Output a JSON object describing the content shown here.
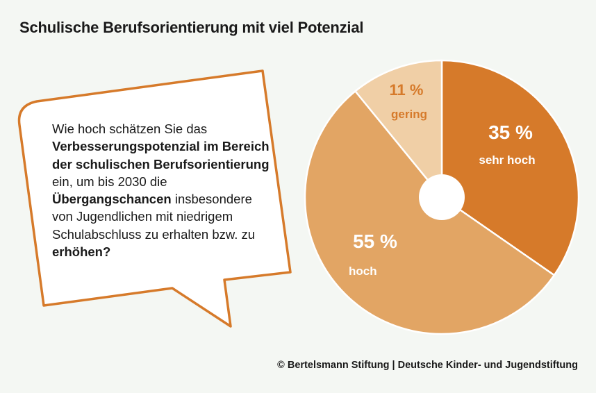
{
  "title": "Schulische Berufsorientierung mit viel Potenzial",
  "question": [
    {
      "text": "Wie hoch schätzen Sie das ",
      "bold": false
    },
    {
      "text": "Verbesserungspotenzial im Bereich der schulischen Berufs­orientierung",
      "bold": true
    },
    {
      "text": " ein, um bis 2030 die ",
      "bold": false
    },
    {
      "text": "Übergangschancen",
      "bold": true
    },
    {
      "text": " insbe­sondere von Jugendlichen mit niedrigem Schulabschluss zu erhalten bzw. zu ",
      "bold": false
    },
    {
      "text": "erhöhen?",
      "bold": true
    }
  ],
  "footer": "© Bertelsmann Stiftung | Deutsche Kinder- und Jugendstiftung",
  "colors": {
    "accent": "#d67a2a",
    "background": "#f4f7f3"
  },
  "chart_data": {
    "type": "pie",
    "donut_hole": true,
    "start": "top",
    "direction": "clockwise",
    "slices": [
      {
        "label": "sehr hoch",
        "value": 35,
        "value_label": "35 %",
        "color": "#d67a2a",
        "text_color": "#ffffff"
      },
      {
        "label": "hoch",
        "value": 55,
        "value_label": "55 %",
        "color": "#e2a564",
        "text_color": "#ffffff"
      },
      {
        "label": "gering",
        "value": 11,
        "value_label": "11 %",
        "color": "#f0cfa6",
        "text_color": "#d67a2a"
      }
    ]
  }
}
